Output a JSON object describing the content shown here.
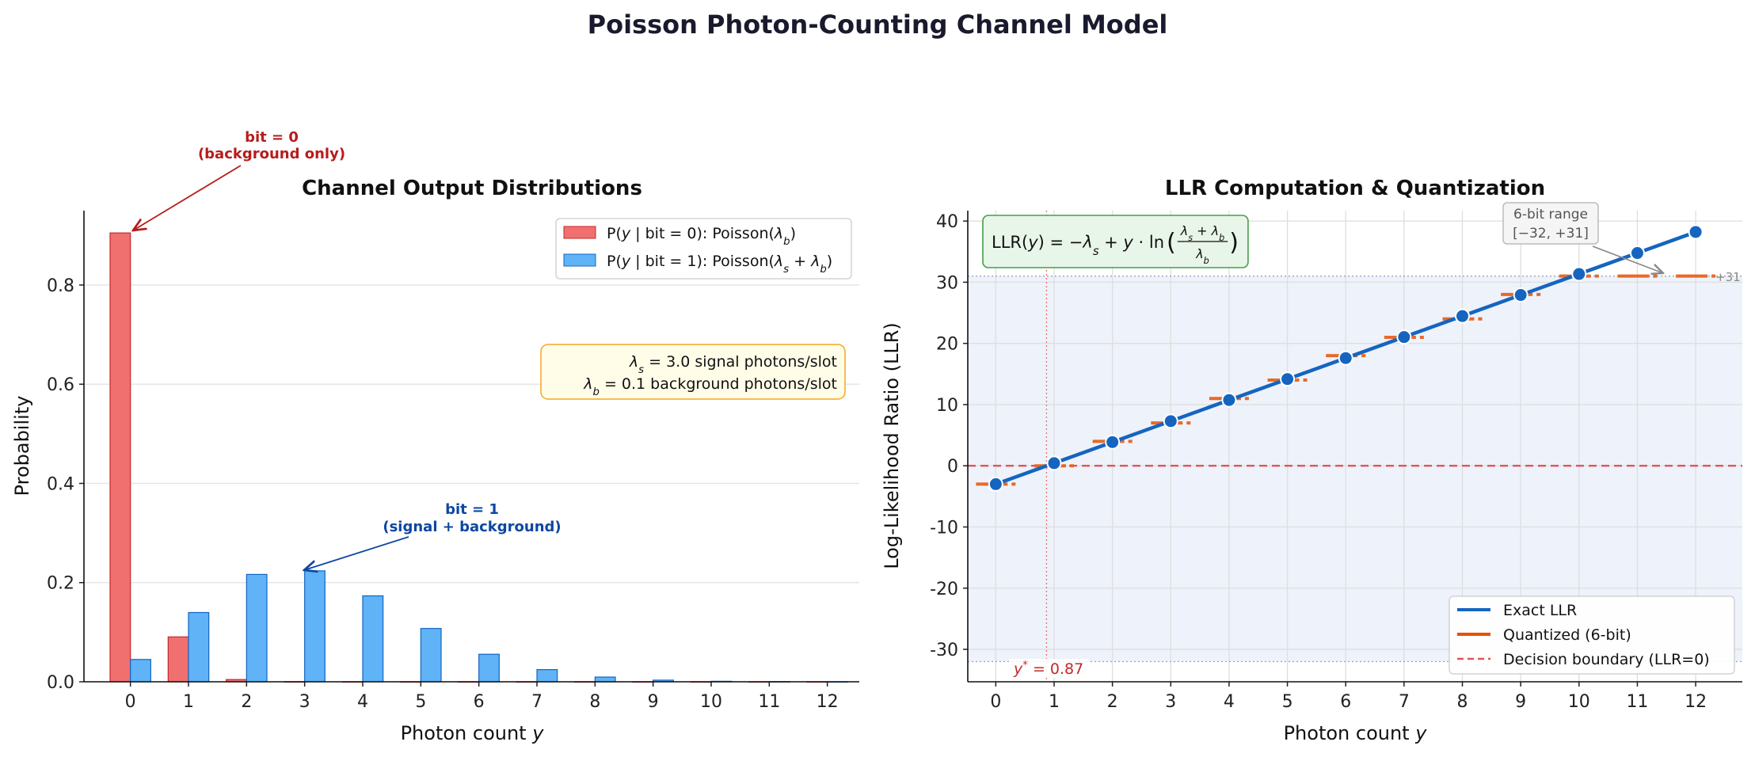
{
  "title": "Poisson Photon-Counting Channel Model",
  "colors": {
    "bit0": "#f07070",
    "bit0_edge": "#c62828",
    "bit1": "#5fb3f6",
    "bit1_edge": "#1565c0",
    "llr": "#1565c0",
    "quant": "#e8692a",
    "boundary": "#e05555",
    "shade": "#eef2fa"
  },
  "chart_data": [
    {
      "type": "bar",
      "title": "Channel Output Distributions",
      "xlabel": "Photon count y",
      "ylabel": "Probability",
      "categories": [
        0,
        1,
        2,
        3,
        4,
        5,
        6,
        7,
        8,
        9,
        10,
        11,
        12
      ],
      "xlim": [
        -0.8,
        12.55
      ],
      "ylim": [
        0,
        0.95
      ],
      "yticks": [
        "0.0",
        "0.2",
        "0.4",
        "0.6",
        "0.8"
      ],
      "grid": "horizontal",
      "legend_position": "top-right",
      "series": [
        {
          "name": "P(y | bit = 0): Poisson(λ_b)",
          "values": [
            0.905,
            0.0905,
            0.0045,
            0.00015,
            0,
            0,
            0,
            0,
            0,
            0,
            0,
            0,
            0
          ]
        },
        {
          "name": "P(y | bit = 1): Poisson(λ_s + λ_b)",
          "values": [
            0.045,
            0.1397,
            0.2165,
            0.2237,
            0.1733,
            0.1075,
            0.0555,
            0.0246,
            0.0095,
            0.0033,
            0.001,
            0.0003,
            7e-05
          ]
        }
      ],
      "annotations": {
        "bit0": [
          "bit = 0",
          "(background only)"
        ],
        "bit1": [
          "bit = 1",
          "(signal + background)"
        ],
        "params": [
          "λ_s = 3.0 signal photons/slot",
          "λ_b = 0.1 background photons/slot"
        ]
      }
    },
    {
      "type": "line",
      "title": "LLR Computation & Quantization",
      "xlabel": "Photon count y",
      "ylabel": "Log-Likelihood Ratio (LLR)",
      "x": [
        0,
        1,
        2,
        3,
        4,
        5,
        6,
        7,
        8,
        9,
        10,
        11,
        12
      ],
      "xlim": [
        -0.48,
        12.8
      ],
      "ylim": [
        -35.3,
        41.7
      ],
      "yticks": [
        -30,
        -20,
        -10,
        0,
        10,
        20,
        30,
        40
      ],
      "grid": "both",
      "legend_position": "lower-right",
      "series": [
        {
          "name": "Exact LLR",
          "values": [
            -3.0,
            0.43,
            3.87,
            7.3,
            10.74,
            14.17,
            17.6,
            21.04,
            24.47,
            27.91,
            31.34,
            34.77,
            38.21
          ]
        },
        {
          "name": "Quantized (6-bit)",
          "values": [
            -3,
            0,
            4,
            7,
            11,
            14,
            18,
            21,
            24,
            28,
            31,
            31,
            31
          ]
        },
        {
          "name": "Decision boundary (LLR=0)",
          "value": 0
        }
      ],
      "range": [
        -32,
        31
      ],
      "threshold": 0.87,
      "annotations": {
        "formula": {
          "lhs": "LLR(y) = −λ_s + y · ln",
          "numerator": "λ_s + λ_b",
          "denominator": "λ_b"
        },
        "range_box": [
          "6-bit range",
          "[−32, +31]"
        ],
        "clip_label": "+31",
        "threshold_label": "y* = 0.87"
      }
    }
  ]
}
